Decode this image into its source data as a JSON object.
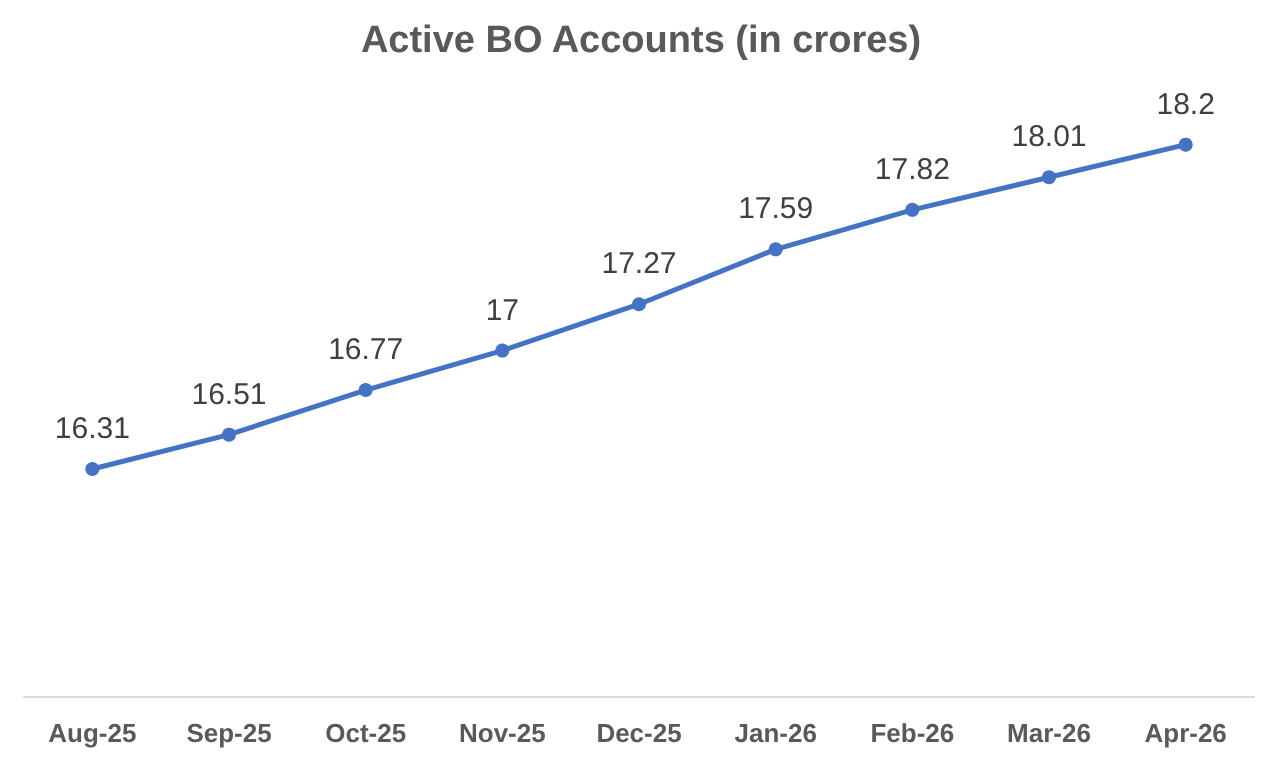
{
  "chart_data": {
    "type": "line",
    "title": "Active BO Accounts (in crores)",
    "categories": [
      "Aug-25",
      "Sep-25",
      "Oct-25",
      "Nov-25",
      "Dec-25",
      "Jan-26",
      "Feb-26",
      "Mar-26",
      "Apr-26"
    ],
    "series": [
      {
        "color": "#4472c4",
        "values": [
          16.31,
          16.51,
          16.77,
          17,
          17.27,
          17.59,
          17.82,
          18.01,
          18.2
        ]
      }
    ],
    "data_labels": true,
    "marker": "circle",
    "line_style": "solid"
  }
}
